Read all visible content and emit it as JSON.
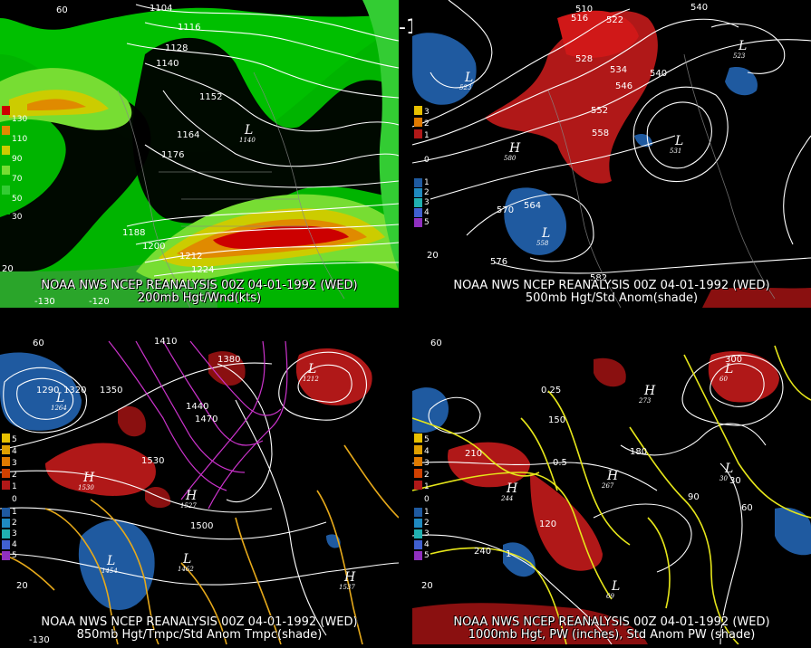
{
  "title": "00Z 04-01-1992 (WED)",
  "panels": [
    {
      "caption_line1": "NOAA NWS NCEP REANALYSIS 00Z 04-01-1992 (WED)",
      "caption_line2": "200mb Hgt/Wnd(kts)",
      "legend": [
        "130",
        "110",
        "90",
        "70",
        "50",
        "30"
      ],
      "contour_labels": [
        "1104",
        "1116",
        "1128",
        "1140",
        "1152",
        "1164",
        "1176",
        "1188",
        "1200",
        "1212",
        "1224"
      ],
      "centers": [
        {
          "type": "L",
          "value": "1140"
        }
      ],
      "lat_labels": [
        "60",
        "20"
      ],
      "lon_labels": [
        "-120",
        "-130"
      ]
    },
    {
      "caption_line1": "NOAA NWS NCEP REANALYSIS 00Z 04-01-1992 (WED)",
      "caption_line2": "500mb Hgt/Std Anom(shade)",
      "legend": [
        "3",
        "2",
        "1",
        "0",
        "1",
        "2",
        "3",
        "4",
        "5"
      ],
      "contour_labels": [
        "510",
        "516",
        "522",
        "528",
        "534",
        "540",
        "546",
        "552",
        "558",
        "564",
        "570",
        "576",
        "582"
      ],
      "centers": [
        {
          "type": "L",
          "value": "523"
        },
        {
          "type": "L",
          "value": "523"
        },
        {
          "type": "L",
          "value": "531"
        },
        {
          "type": "L",
          "value": "558"
        },
        {
          "type": "H",
          "value": "580"
        }
      ],
      "lat_labels": [
        "20"
      ],
      "lon_labels": [
        "540"
      ]
    },
    {
      "caption_line1": "NOAA NWS NCEP REANALYSIS 00Z 04-01-1992 (WED)",
      "caption_line2": "850mb Hgt/Tmpc/Std Anom Tmpc(shade)",
      "legend": [
        "5",
        "4",
        "3",
        "2",
        "1",
        "0",
        "1",
        "2",
        "3",
        "4",
        "5"
      ],
      "contour_labels": [
        "1290",
        "1320",
        "1350",
        "1380",
        "1410",
        "1440",
        "1470",
        "1500",
        "1530"
      ],
      "centers": [
        {
          "type": "L",
          "value": "1264"
        },
        {
          "type": "L",
          "value": "1212"
        },
        {
          "type": "H",
          "value": "1530"
        },
        {
          "type": "H",
          "value": "1527"
        },
        {
          "type": "L",
          "value": "1454"
        },
        {
          "type": "L",
          "value": "1462"
        },
        {
          "type": "H",
          "value": "1537"
        }
      ],
      "lat_labels": [
        "60",
        "20"
      ],
      "lon_labels": [
        "-130"
      ]
    },
    {
      "caption_line1": "NOAA NWS NCEP REANALYSIS 00Z 04-01-1992 (WED)",
      "caption_line2": "1000mb Hgt, PW (inches), Std Anom PW (shade)",
      "legend": [
        "5",
        "4",
        "3",
        "2",
        "1",
        "0",
        "1",
        "2",
        "3",
        "4",
        "5"
      ],
      "contour_labels": [
        "30",
        "60",
        "90",
        "120",
        "150",
        "180",
        "210",
        "240",
        "300"
      ],
      "pw_labels": [
        "0.25",
        "0.5",
        "1"
      ],
      "centers": [
        {
          "type": "H",
          "value": "267"
        },
        {
          "type": "H",
          "value": "244"
        },
        {
          "type": "H",
          "value": "273"
        },
        {
          "type": "L",
          "value": "60"
        },
        {
          "type": "L",
          "value": "69"
        },
        {
          "type": "L",
          "value": "30"
        }
      ],
      "lat_labels": [
        "60",
        "20"
      ],
      "lon_labels": []
    }
  ],
  "colors": {
    "wind_30": "#00b400",
    "wind_50": "#33cc33",
    "wind_70": "#77dd33",
    "wind_90": "#cccc00",
    "wind_110": "#e08a00",
    "wind_130": "#cc0000",
    "anom_pos": "#b01818",
    "anom_neg": "#1f5aa0",
    "temp_cold": "#cc33cc",
    "temp_warm": "#e6a91a",
    "pw_line": "#e6e61a",
    "contour": "#ffffff"
  }
}
